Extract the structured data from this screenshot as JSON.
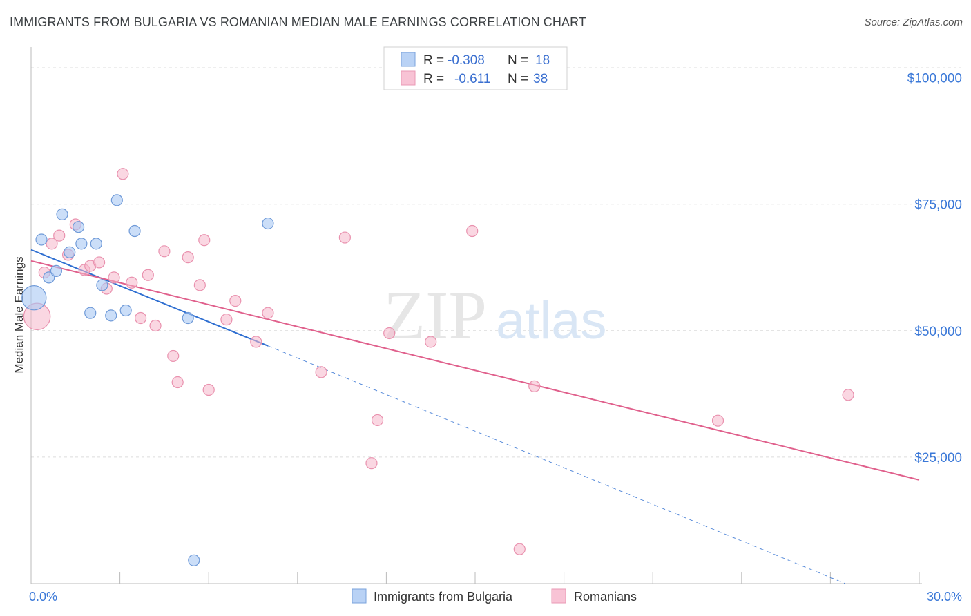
{
  "title": "IMMIGRANTS FROM BULGARIA VS ROMANIAN MEDIAN MALE EARNINGS CORRELATION CHART",
  "source": "Source: ZipAtlas.com",
  "watermark": {
    "zip": "ZIP",
    "atlas": "atlas"
  },
  "stats": [
    {
      "r_label": "R =",
      "r_value": "-0.308",
      "n_label": "N =",
      "n_value": "18"
    },
    {
      "r_label": "R =",
      "r_value": "-0.611",
      "n_label": "N =",
      "n_value": "38"
    }
  ],
  "legend": [
    "Immigrants from Bulgaria",
    "Romanians"
  ],
  "colors": {
    "blue_fill": "#a9c8f3",
    "blue_stroke": "#6f9ad8",
    "blue_line": "#2f6fd1",
    "pink_fill": "#f6b7cb",
    "pink_stroke": "#e991ae",
    "pink_line": "#e0608c",
    "grid": "#dcdcdc",
    "axis_text": "#3a78d8"
  },
  "chart_data": {
    "type": "scatter",
    "title": "IMMIGRANTS FROM BULGARIA VS ROMANIAN MEDIAN MALE EARNINGS CORRELATION CHART",
    "xlabel": "",
    "ylabel": "Median Male Earnings",
    "xlim": [
      0,
      30
    ],
    "ylim": [
      0,
      105000
    ],
    "x_tick_labels": [
      {
        "value": 0,
        "label": "0.0%"
      },
      {
        "value": 30,
        "label": "30.0%"
      }
    ],
    "y_tick_labels": [
      {
        "value": 25000,
        "label": "$25,000"
      },
      {
        "value": 50000,
        "label": "$50,000"
      },
      {
        "value": 75000,
        "label": "$75,000"
      },
      {
        "value": 100000,
        "label": "$100,000"
      }
    ],
    "grid": true,
    "series": [
      {
        "name": "Immigrants from Bulgaria",
        "r": -0.308,
        "n": 18,
        "points": [
          {
            "x": 0.1,
            "y": 56500,
            "size": 2.2
          },
          {
            "x": 0.35,
            "y": 68000
          },
          {
            "x": 0.6,
            "y": 60500
          },
          {
            "x": 0.85,
            "y": 61800
          },
          {
            "x": 1.05,
            "y": 73000
          },
          {
            "x": 1.3,
            "y": 65500
          },
          {
            "x": 1.6,
            "y": 70500
          },
          {
            "x": 1.7,
            "y": 67200
          },
          {
            "x": 2.0,
            "y": 53500
          },
          {
            "x": 2.2,
            "y": 67200
          },
          {
            "x": 2.4,
            "y": 59000
          },
          {
            "x": 2.7,
            "y": 53000
          },
          {
            "x": 2.9,
            "y": 75800
          },
          {
            "x": 3.2,
            "y": 54000
          },
          {
            "x": 3.5,
            "y": 69700
          },
          {
            "x": 5.3,
            "y": 52500
          },
          {
            "x": 5.5,
            "y": 4600
          },
          {
            "x": 8.0,
            "y": 71200
          }
        ],
        "trend": {
          "x0": 0,
          "y0": 66000,
          "x1": 8.0,
          "y1": 47000,
          "dashed_to_x": 27.5,
          "dashed_to_y": 0
        }
      },
      {
        "name": "Romanians",
        "r": -0.611,
        "n": 38,
        "points": [
          {
            "x": 0.2,
            "y": 52800,
            "size": 2.4
          },
          {
            "x": 0.45,
            "y": 61500
          },
          {
            "x": 0.7,
            "y": 67200
          },
          {
            "x": 0.95,
            "y": 68800
          },
          {
            "x": 1.25,
            "y": 65000
          },
          {
            "x": 1.5,
            "y": 71000
          },
          {
            "x": 1.8,
            "y": 62000
          },
          {
            "x": 2.0,
            "y": 62800
          },
          {
            "x": 2.3,
            "y": 63500
          },
          {
            "x": 2.55,
            "y": 58300
          },
          {
            "x": 2.8,
            "y": 60500
          },
          {
            "x": 3.1,
            "y": 81000
          },
          {
            "x": 3.4,
            "y": 59500
          },
          {
            "x": 3.7,
            "y": 52500
          },
          {
            "x": 3.95,
            "y": 61000
          },
          {
            "x": 4.2,
            "y": 51000
          },
          {
            "x": 4.5,
            "y": 65700
          },
          {
            "x": 4.8,
            "y": 45000
          },
          {
            "x": 4.95,
            "y": 39800
          },
          {
            "x": 5.3,
            "y": 64500
          },
          {
            "x": 5.7,
            "y": 59000
          },
          {
            "x": 5.85,
            "y": 67900
          },
          {
            "x": 6.0,
            "y": 38300
          },
          {
            "x": 6.6,
            "y": 52200
          },
          {
            "x": 6.9,
            "y": 55900
          },
          {
            "x": 7.6,
            "y": 47800
          },
          {
            "x": 8.0,
            "y": 53500
          },
          {
            "x": 9.8,
            "y": 41800
          },
          {
            "x": 10.6,
            "y": 68400
          },
          {
            "x": 11.5,
            "y": 23800
          },
          {
            "x": 11.7,
            "y": 32300
          },
          {
            "x": 12.1,
            "y": 49500
          },
          {
            "x": 13.5,
            "y": 47800
          },
          {
            "x": 14.9,
            "y": 69700
          },
          {
            "x": 16.5,
            "y": 6800
          },
          {
            "x": 17.0,
            "y": 39000
          },
          {
            "x": 23.2,
            "y": 32200
          },
          {
            "x": 27.6,
            "y": 37300
          }
        ],
        "trend": {
          "x0": 0,
          "y0": 63800,
          "x1": 30,
          "y1": 20500
        }
      }
    ]
  }
}
